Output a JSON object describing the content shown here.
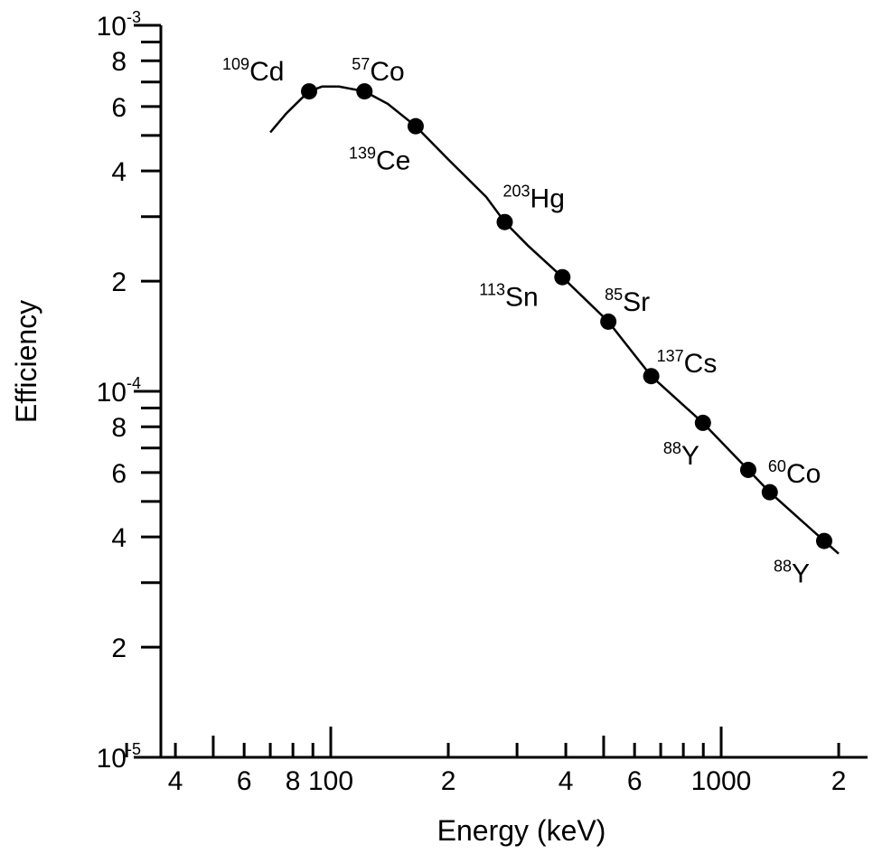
{
  "chart_data": {
    "type": "line",
    "xlabel": "Energy (keV)",
    "ylabel": "Efficiency",
    "x_scale": "log",
    "y_scale": "log",
    "xlim": [
      30,
      2200
    ],
    "ylim": [
      1e-05,
      0.001
    ],
    "x_tick_labels": [
      {
        "value": 40,
        "label": "4"
      },
      {
        "value": 60,
        "label": "6"
      },
      {
        "value": 80,
        "label": "8"
      },
      {
        "value": 100,
        "label": "100"
      },
      {
        "value": 200,
        "label": "2"
      },
      {
        "value": 400,
        "label": "4"
      },
      {
        "value": 600,
        "label": "6"
      },
      {
        "value": 1000,
        "label": "1000"
      },
      {
        "value": 2000,
        "label": "2"
      }
    ],
    "y_tick_labels": [
      {
        "value": 0.001,
        "base": "10",
        "exp": "-3"
      },
      {
        "value": 0.0008,
        "base": "8",
        "exp": ""
      },
      {
        "value": 0.0006,
        "base": "6",
        "exp": ""
      },
      {
        "value": 0.0004,
        "base": "4",
        "exp": ""
      },
      {
        "value": 0.0002,
        "base": "2",
        "exp": ""
      },
      {
        "value": 0.0001,
        "base": "10",
        "exp": "-4"
      },
      {
        "value": 8e-05,
        "base": "8",
        "exp": ""
      },
      {
        "value": 6e-05,
        "base": "6",
        "exp": ""
      },
      {
        "value": 4e-05,
        "base": "4",
        "exp": ""
      },
      {
        "value": 2e-05,
        "base": "2",
        "exp": ""
      },
      {
        "value": 1e-05,
        "base": "10",
        "exp": "-5"
      }
    ],
    "curve": [
      [
        70,
        0.00051
      ],
      [
        77,
        0.000575
      ],
      [
        84,
        0.00063
      ],
      [
        88,
        0.00066
      ],
      [
        95,
        0.00068
      ],
      [
        105,
        0.00068
      ],
      [
        122,
        0.00066
      ],
      [
        140,
        0.00061
      ],
      [
        165,
        0.00053
      ],
      [
        200,
        0.00043
      ],
      [
        250,
        0.00034
      ],
      [
        279,
        0.00029
      ],
      [
        320,
        0.00025
      ],
      [
        392,
        0.000205
      ],
      [
        514,
        0.000155
      ],
      [
        662,
        0.00011
      ],
      [
        898,
        8.2e-05
      ],
      [
        1173,
        6.1e-05
      ],
      [
        1332,
        5.3e-05
      ],
      [
        1836,
        3.9e-05
      ],
      [
        2000,
        3.6e-05
      ]
    ],
    "series": [
      {
        "points": [
          {
            "x": 88,
            "y": 0.00066,
            "mass": "109",
            "element": "Cd"
          },
          {
            "x": 122,
            "y": 0.00066,
            "mass": "57",
            "element": "Co"
          },
          {
            "x": 165,
            "y": 0.00053,
            "mass": "139",
            "element": "Ce"
          },
          {
            "x": 279,
            "y": 0.00029,
            "mass": "203",
            "element": "Hg"
          },
          {
            "x": 392,
            "y": 0.000205,
            "mass": "113",
            "element": "Sn"
          },
          {
            "x": 514,
            "y": 0.000155,
            "mass": "85",
            "element": "Sr"
          },
          {
            "x": 662,
            "y": 0.00011,
            "mass": "137",
            "element": "Cs"
          },
          {
            "x": 898,
            "y": 8.2e-05,
            "mass": "88",
            "element": "Y"
          },
          {
            "x": 1173,
            "y": 6.1e-05,
            "mass": "60",
            "element": "Co"
          },
          {
            "x": 1332,
            "y": 5.3e-05,
            "mass": "",
            "element": ""
          },
          {
            "x": 1836,
            "y": 3.9e-05,
            "mass": "88",
            "element": "Y"
          }
        ]
      }
    ]
  }
}
